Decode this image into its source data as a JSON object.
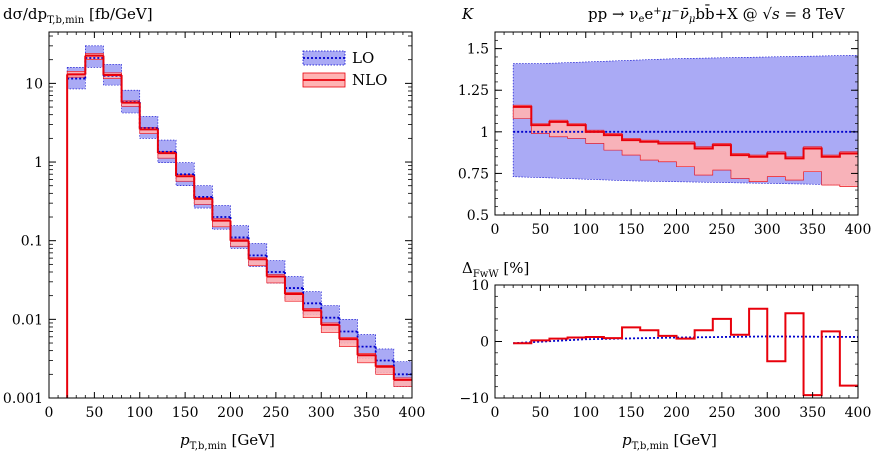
{
  "chart_data": [
    {
      "type": "line",
      "panel": "main",
      "ylabel": "dσ/dp",
      "ylabel_sub": "T,b,min",
      "ylabel_unit": " [fb/GeV]",
      "xlabel": "p",
      "xlabel_sub": "T,b,min",
      "xlabel_unit": " [GeV]",
      "y_scale": "log",
      "xlim": [
        0,
        400
      ],
      "ylim": [
        0.001,
        45
      ],
      "x_ticks": [
        0,
        50,
        100,
        150,
        200,
        250,
        300,
        350,
        400
      ],
      "x_tick_labels": [
        "0",
        "50",
        "100",
        "150",
        "200",
        "250",
        "300",
        "350",
        "400"
      ],
      "y_ticks": [
        0.001,
        0.01,
        0.1,
        1,
        10
      ],
      "y_tick_labels": [
        "0.001",
        "0.01",
        "0.1",
        "1",
        "10"
      ],
      "legend_position": "top-right",
      "bin_edges": [
        20,
        40,
        60,
        80,
        100,
        120,
        140,
        160,
        180,
        200,
        220,
        240,
        260,
        280,
        300,
        320,
        340,
        360,
        380,
        400
      ],
      "series": [
        {
          "name": "LO",
          "style": "dotted",
          "color": "#0000cc",
          "band_color": "#aaaaf5",
          "values": [
            11.5,
            21,
            12.5,
            5.8,
            2.7,
            1.35,
            0.7,
            0.36,
            0.2,
            0.11,
            0.065,
            0.04,
            0.025,
            0.016,
            0.0105,
            0.007,
            0.0045,
            0.003,
            0.002
          ],
          "band_lower": [
            8.5,
            16,
            9.5,
            4.2,
            2.0,
            0.98,
            0.5,
            0.26,
            0.14,
            0.08,
            0.047,
            0.029,
            0.018,
            0.0115,
            0.0075,
            0.005,
            0.0032,
            0.0021,
            0.0014
          ],
          "band_upper": [
            16,
            30,
            17.5,
            8.2,
            3.8,
            1.9,
            0.98,
            0.5,
            0.28,
            0.155,
            0.092,
            0.056,
            0.035,
            0.0225,
            0.015,
            0.01,
            0.0064,
            0.0042,
            0.0029
          ]
        },
        {
          "name": "NLO",
          "style": "solid",
          "color": "#e8000b",
          "band_color": "#ffb3b3",
          "values": [
            13,
            22.5,
            12.8,
            5.7,
            2.6,
            1.3,
            0.66,
            0.34,
            0.18,
            0.1,
            0.058,
            0.035,
            0.021,
            0.013,
            0.0085,
            0.0056,
            0.0035,
            0.0025,
            0.0017
          ],
          "band_lower": [
            12,
            20,
            11.5,
            5.1,
            2.3,
            1.12,
            0.57,
            0.29,
            0.15,
            0.085,
            0.048,
            0.029,
            0.017,
            0.0105,
            0.0068,
            0.0045,
            0.0028,
            0.002,
            0.0014
          ],
          "band_upper": [
            14.2,
            24,
            13.6,
            6.0,
            2.75,
            1.36,
            0.69,
            0.355,
            0.19,
            0.105,
            0.061,
            0.037,
            0.022,
            0.0137,
            0.009,
            0.0059,
            0.0037,
            0.0026,
            0.0018
          ]
        }
      ]
    },
    {
      "type": "line",
      "panel": "ratio",
      "ylabel": "K",
      "title": "pp → ν",
      "title_parts": {
        "t1": "pp → ν",
        "t1_sub": "e",
        "t2": "e",
        "t2_sup": "+",
        "t3": "μ",
        "t3_sup": "−",
        "t4": "ν̄",
        "t4_sub": "μ",
        "t5": "bb̄+X @ ",
        "t6": "√s",
        "t7": " = 8 TeV"
      },
      "xlim": [
        0,
        400
      ],
      "ylim": [
        0.5,
        1.6
      ],
      "x_ticks": [
        0,
        50,
        100,
        150,
        200,
        250,
        300,
        350,
        400
      ],
      "x_tick_labels": [
        "0",
        "50",
        "100",
        "150",
        "200",
        "250",
        "300",
        "350",
        "400"
      ],
      "y_ticks": [
        0.5,
        0.75,
        1.0,
        1.25,
        1.5
      ],
      "y_tick_labels": [
        "0.5",
        "0.75",
        "1",
        "1.25",
        "1.5"
      ],
      "bin_edges": [
        20,
        40,
        60,
        80,
        100,
        120,
        140,
        160,
        180,
        200,
        220,
        240,
        260,
        280,
        300,
        320,
        340,
        360,
        380,
        400
      ],
      "lo_band": {
        "x": [
          20,
          50,
          100,
          150,
          200,
          250,
          300,
          350,
          400
        ],
        "upper": [
          1.41,
          1.41,
          1.42,
          1.43,
          1.44,
          1.445,
          1.45,
          1.455,
          1.46
        ],
        "lower": [
          0.73,
          0.725,
          0.715,
          0.705,
          0.7,
          0.695,
          0.69,
          0.685,
          0.68
        ],
        "center": 1.0
      },
      "nlo": {
        "values": [
          1.15,
          1.04,
          1.06,
          1.04,
          1.0,
          0.98,
          0.95,
          0.94,
          0.93,
          0.93,
          0.9,
          0.92,
          0.86,
          0.85,
          0.87,
          0.84,
          0.9,
          0.85,
          0.87
        ],
        "band_lower": [
          1.08,
          0.99,
          0.97,
          0.96,
          0.93,
          0.89,
          0.86,
          0.83,
          0.82,
          0.79,
          0.74,
          0.77,
          0.72,
          0.7,
          0.73,
          0.71,
          0.76,
          0.68,
          0.67
        ],
        "band_upper": [
          1.16,
          1.05,
          1.07,
          1.05,
          1.01,
          0.99,
          0.96,
          0.95,
          0.94,
          0.94,
          0.91,
          0.93,
          0.87,
          0.86,
          0.88,
          0.85,
          0.91,
          0.86,
          0.88
        ]
      }
    },
    {
      "type": "line",
      "panel": "fww",
      "ylabel": "Δ",
      "ylabel_sub": "FwW",
      "ylabel_unit": " [%]",
      "xlabel": "p",
      "xlabel_sub": "T,b,min",
      "xlabel_unit": " [GeV]",
      "xlim": [
        0,
        400
      ],
      "ylim": [
        -10,
        10
      ],
      "x_ticks": [
        0,
        50,
        100,
        150,
        200,
        250,
        300,
        350,
        400
      ],
      "x_tick_labels": [
        "0",
        "50",
        "100",
        "150",
        "200",
        "250",
        "300",
        "350",
        "400"
      ],
      "y_ticks": [
        -10,
        0,
        10
      ],
      "y_tick_labels": [
        "−10",
        "0",
        "10"
      ],
      "bin_edges": [
        20,
        40,
        60,
        80,
        100,
        120,
        140,
        160,
        180,
        200,
        220,
        240,
        260,
        280,
        300,
        320,
        340,
        360,
        380,
        400
      ],
      "lo_line": {
        "x": [
          20,
          100,
          200,
          300,
          400
        ],
        "y": [
          -0.3,
          0.4,
          0.7,
          0.9,
          0.8
        ]
      },
      "nlo": {
        "values": [
          -0.3,
          0.2,
          0.5,
          0.7,
          0.8,
          0.6,
          2.5,
          2.0,
          1.0,
          0.5,
          2.0,
          4.0,
          1.2,
          5.8,
          -3.5,
          5.0,
          -9.5,
          1.8,
          -7.8
        ]
      }
    }
  ]
}
